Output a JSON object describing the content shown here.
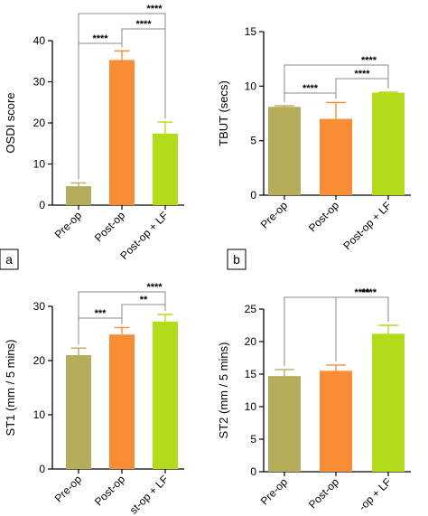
{
  "chart_data": [
    {
      "type": "bar",
      "panel_label": "a",
      "categories": [
        "Pre-op",
        "Post-op",
        "Post-op + LF"
      ],
      "values": [
        4.6,
        35.3,
        17.4
      ],
      "errors": [
        0.8,
        2.2,
        2.8
      ],
      "colors": [
        "#b5ad5b",
        "#f98d35",
        "#b2dc1a"
      ],
      "ylabel": "OSDI score",
      "ylim": [
        0,
        40
      ],
      "yticks": [
        "0",
        "10",
        "20",
        "30",
        "40"
      ],
      "significance": [
        {
          "from": 0,
          "to": 1,
          "label": "****"
        },
        {
          "from": 0,
          "to": 2,
          "label": "****"
        },
        {
          "from": 1,
          "to": 2,
          "label": "****"
        }
      ]
    },
    {
      "type": "bar",
      "panel_label": "b",
      "categories": [
        "Pre-op",
        "Post-op",
        "Post-op + LF"
      ],
      "values": [
        8.1,
        7.0,
        9.4
      ],
      "errors": [
        0.1,
        1.5,
        0.05
      ],
      "colors": [
        "#b5ad5b",
        "#f98d35",
        "#b2dc1a"
      ],
      "ylabel": "TBUT (secs)",
      "ylim": [
        0,
        15
      ],
      "yticks": [
        "0",
        "5",
        "10",
        "15"
      ],
      "significance": [
        {
          "from": 0,
          "to": 1,
          "label": "****"
        },
        {
          "from": 0,
          "to": 2,
          "label": "****"
        },
        {
          "from": 1,
          "to": 2,
          "label": "****"
        }
      ]
    },
    {
      "type": "bar",
      "panel_label": "",
      "categories": [
        "Pre-op",
        "Post-op",
        "st-op + LF"
      ],
      "values": [
        21.0,
        24.8,
        27.2
      ],
      "errors": [
        1.3,
        1.3,
        1.3
      ],
      "colors": [
        "#b5ad5b",
        "#f98d35",
        "#b2dc1a"
      ],
      "ylabel": "ST1 (mm / 5 mins)",
      "ylim": [
        0,
        30
      ],
      "yticks": [
        "0",
        "10",
        "20",
        "30"
      ],
      "significance": [
        {
          "from": 0,
          "to": 1,
          "label": "***"
        },
        {
          "from": 0,
          "to": 2,
          "label": "****"
        },
        {
          "from": 1,
          "to": 2,
          "label": "**"
        }
      ]
    },
    {
      "type": "bar",
      "panel_label": "",
      "categories": [
        "Pre-op",
        "Post-op",
        "-op + LF"
      ],
      "values": [
        14.7,
        15.5,
        21.2
      ],
      "errors": [
        1.0,
        0.9,
        1.3
      ],
      "colors": [
        "#b5ad5b",
        "#f98d35",
        "#b2dc1a"
      ],
      "ylabel": "ST2 (mm / 5 mins)",
      "ylim": [
        0,
        25
      ],
      "yticks": [
        "0",
        "5",
        "10",
        "15",
        "20",
        "25"
      ],
      "significance": [
        {
          "from": 0,
          "to": 2,
          "label": "****"
        },
        {
          "from": 1,
          "to": 2,
          "label": "****"
        }
      ]
    }
  ]
}
